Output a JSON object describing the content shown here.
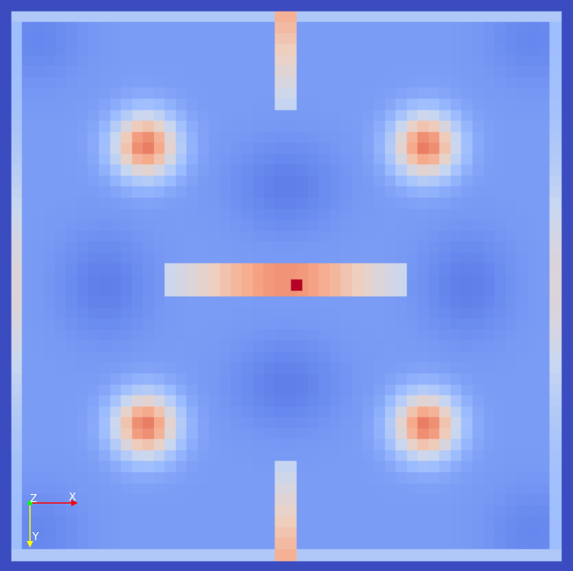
{
  "view": {
    "background_color": "#3b4cc0",
    "colormap": "coolwarm",
    "colormap_stops": [
      "#3b4cc0",
      "#6788ee",
      "#9abbff",
      "#c9d7f0",
      "#edd1c2",
      "#f7a889",
      "#e26952",
      "#b40426"
    ]
  },
  "orientation_axes": {
    "x_label": "X",
    "y_label": "Y",
    "z_label": "Z",
    "x_color": "#ff0000",
    "y_color": "#ffff00",
    "z_color": "#00ff00",
    "label_color": "#ffffff"
  }
}
